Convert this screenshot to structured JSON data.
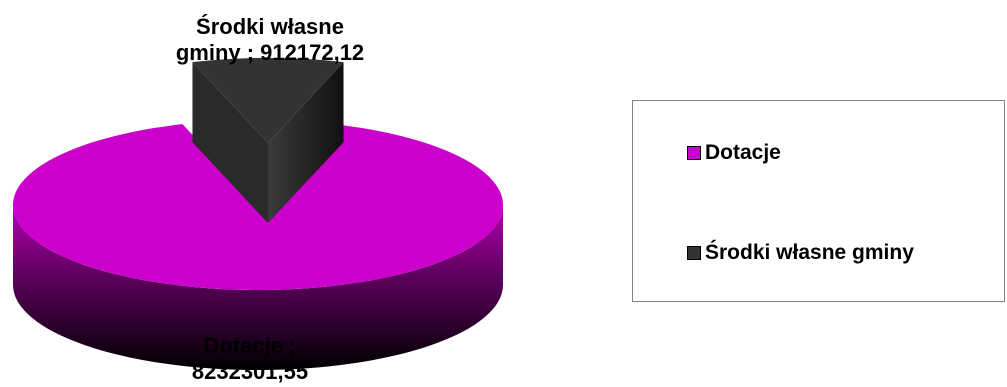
{
  "chart_data": {
    "type": "pie",
    "three_d": true,
    "slices": [
      {
        "name": "Dotacje",
        "value": 8232301.55,
        "color": "#cc00cc",
        "data_label": "Dotacje ;\n8232301,55"
      },
      {
        "name": "Środki własne gminy",
        "value": 912172.12,
        "color": "#333333",
        "data_label": "Środki własne\ngminy ; 912172,12",
        "exploded": true
      }
    ],
    "legend": {
      "placement": "right",
      "entries": [
        "Dotacje",
        "Środki własne gminy"
      ]
    }
  },
  "labels": {
    "own_line1": "Środki własne",
    "own_line2": "gminy ; 912172,12",
    "dot_line1": "Dotacje ;",
    "dot_line2": "8232301,55"
  },
  "legend_text": {
    "dotacje": "Dotacje",
    "srodki": "Środki własne gminy"
  },
  "colors": {
    "dotacje": "#cc00cc",
    "srodki": "#333333"
  }
}
